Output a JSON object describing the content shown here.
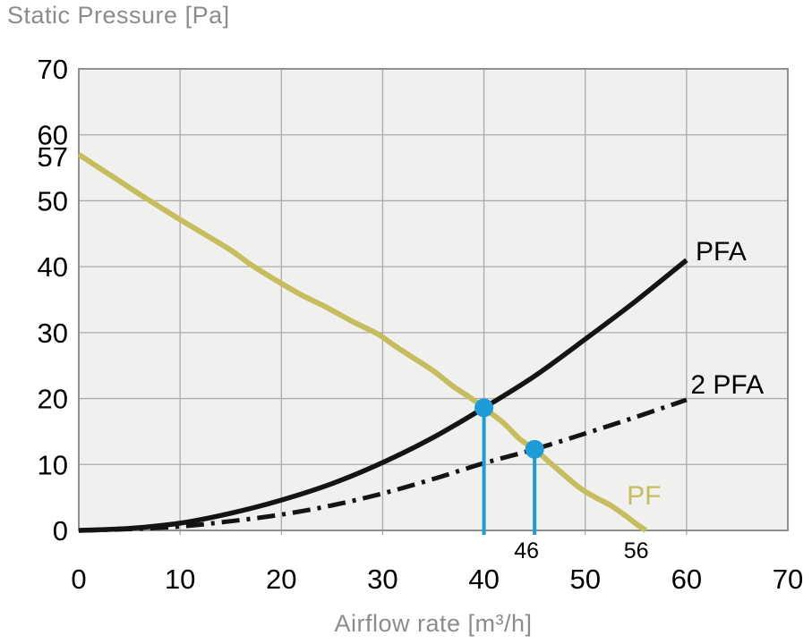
{
  "chart_data": {
    "type": "line",
    "title": "Static Pressure [Pa]",
    "xlabel": "Airflow rate [m³/h]",
    "ylabel": "Static Pressure [Pa]",
    "xlim": [
      0,
      70
    ],
    "ylim": [
      0,
      70
    ],
    "xticks": [
      0,
      10,
      20,
      30,
      40,
      50,
      60,
      70
    ],
    "yticks": [
      0,
      10,
      20,
      30,
      40,
      50,
      60,
      70
    ],
    "ytick_extra": {
      "label": "57",
      "value": 57
    },
    "grid": true,
    "legend_position": "inline-labels",
    "colors": {
      "plot_background": "#f0f0ee",
      "gridline": "#ababab",
      "border": "#909090",
      "tick_text": "#000000",
      "title_text": "#8c8c8c",
      "annotation": "#1e9cd7"
    },
    "series": [
      {
        "name": "PF",
        "role": "system-resistance-curve",
        "color": "#c6bd5e",
        "style": "solid",
        "width": 6,
        "label": {
          "text": "PF",
          "x": 55.8,
          "y": 5.3,
          "anchor": "middle"
        },
        "points": [
          [
            0,
            57
          ],
          [
            3,
            54
          ],
          [
            6,
            51
          ],
          [
            9.5,
            47.6
          ],
          [
            12,
            45.3
          ],
          [
            15,
            42.5
          ],
          [
            17,
            40.3
          ],
          [
            19.4,
            38
          ],
          [
            22,
            35.7
          ],
          [
            24.5,
            33.8
          ],
          [
            27,
            31.7
          ],
          [
            29.5,
            29.8
          ],
          [
            31,
            28.2
          ],
          [
            33,
            26.2
          ],
          [
            35,
            24.2
          ],
          [
            37,
            21.8
          ],
          [
            38.5,
            20.3
          ],
          [
            40,
            18.6
          ],
          [
            42,
            16.2
          ],
          [
            43.5,
            13.9
          ],
          [
            45,
            12.3
          ],
          [
            46.5,
            10.3
          ],
          [
            48,
            8.3
          ],
          [
            49.5,
            6.4
          ],
          [
            51,
            5
          ],
          [
            52.5,
            3.8
          ],
          [
            54,
            2.2
          ],
          [
            55.2,
            0.8
          ],
          [
            56,
            0
          ]
        ]
      },
      {
        "name": "PFA",
        "role": "fan-curve-single",
        "color": "#141414",
        "style": "solid",
        "width": 5.5,
        "label": {
          "text": "PFA",
          "x": 60.9,
          "y": 42.3,
          "anchor": "start"
        },
        "points": [
          [
            0,
            0
          ],
          [
            5,
            0.3
          ],
          [
            10,
            1.1
          ],
          [
            15,
            2.6
          ],
          [
            20,
            4.6
          ],
          [
            25,
            7.1
          ],
          [
            30,
            10.3
          ],
          [
            35,
            14.1
          ],
          [
            40,
            18.6
          ],
          [
            45,
            23.4
          ],
          [
            50,
            29
          ],
          [
            55,
            34.8
          ],
          [
            60,
            41
          ]
        ]
      },
      {
        "name": "2 PFA",
        "role": "fan-curve-double",
        "color": "#141414",
        "style": "dashdot",
        "width": 5,
        "label": {
          "text": "2 PFA",
          "x": 60.4,
          "y": 22.1,
          "anchor": "start"
        },
        "points": [
          [
            0,
            0
          ],
          [
            5,
            0.2
          ],
          [
            10,
            0.6
          ],
          [
            15,
            1.4
          ],
          [
            20,
            2.4
          ],
          [
            25,
            3.8
          ],
          [
            30,
            5.6
          ],
          [
            35,
            7.8
          ],
          [
            40,
            10.2
          ],
          [
            45,
            12.3
          ],
          [
            50,
            14.7
          ],
          [
            55,
            17.2
          ],
          [
            60,
            19.8
          ]
        ]
      }
    ],
    "annotations": {
      "description": "operating points where PF intersects PFA and 2 PFA, with drop lines to x-axis",
      "operating_points": [
        {
          "x": 40,
          "y": 18.6
        },
        {
          "x": 45,
          "y": 12.3
        }
      ],
      "x_sublabels": [
        {
          "text": "46",
          "x": 45,
          "dx": -9
        },
        {
          "text": "56",
          "x": 56,
          "dx": -11
        }
      ]
    }
  }
}
